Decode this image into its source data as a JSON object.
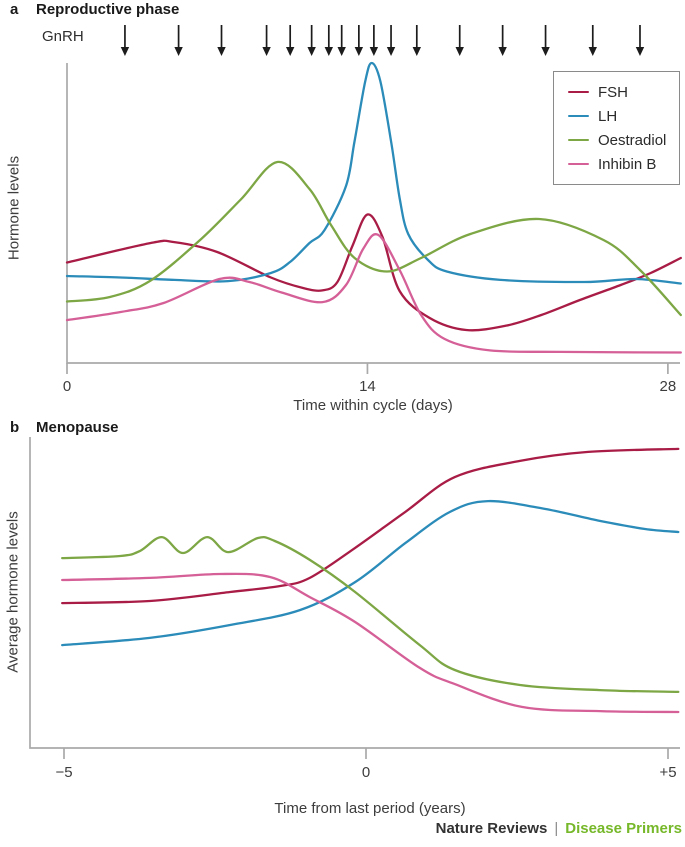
{
  "figure": {
    "footer": {
      "brand": "Nature Reviews",
      "separator": "|",
      "publication": "Disease Primers"
    }
  },
  "colors": {
    "fsh": "#a81c46",
    "lh": "#2b8bb9",
    "oestradiol": "#7da644",
    "inhibin_b": "#d55f97",
    "axis": "#a9a9a9",
    "arrow": "#1c1c1c",
    "tick_label": "#3d3d3d",
    "footer_brand": "#333333",
    "footer_publication": "#76b82a"
  },
  "legend": {
    "position": "top-right",
    "items": [
      {
        "label": "FSH",
        "color_key": "fsh"
      },
      {
        "label": "LH",
        "color_key": "lh"
      },
      {
        "label": "Oestradiol",
        "color_key": "oestradiol"
      },
      {
        "label": "Inhibin B",
        "color_key": "inhibin_b"
      }
    ]
  },
  "chart_data": [
    {
      "id": "panel_a",
      "type": "line",
      "panel_label": "a",
      "title": "Reproductive phase",
      "annotation": "GnRH",
      "xlabel": "Time within cycle (days)",
      "ylabel": "Hormone levels",
      "grid": false,
      "x_axis": {
        "range": [
          0,
          28.6
        ],
        "ticks": [
          {
            "value": 0,
            "label": "0"
          },
          {
            "value": 14,
            "label": "14"
          },
          {
            "value": 28,
            "label": "28"
          }
        ]
      },
      "y_axis": {
        "range": [
          0,
          105
        ],
        "tick_labels": "none (relative hormone levels)"
      },
      "gnrh_pulse_days": [
        2.7,
        5.2,
        7.2,
        9.3,
        10.4,
        11.4,
        12.2,
        12.8,
        13.6,
        14.3,
        15.1,
        16.3,
        18.3,
        20.3,
        22.3,
        24.5,
        26.7
      ],
      "series": [
        {
          "name": "FSH",
          "color_key": "fsh",
          "points": [
            [
              0,
              32.5
            ],
            [
              3.9,
              39
            ],
            [
              5,
              39.3
            ],
            [
              7,
              36
            ],
            [
              9.5,
              27.5
            ],
            [
              11,
              24
            ],
            [
              11.9,
              23.2
            ],
            [
              12.6,
              26
            ],
            [
              13.3,
              38
            ],
            [
              14,
              48.5
            ],
            [
              14.7,
              41
            ],
            [
              15.5,
              23
            ],
            [
              16.9,
              14
            ],
            [
              18.6,
              10
            ],
            [
              20.5,
              11.5
            ],
            [
              22.1,
              15
            ],
            [
              23.9,
              20
            ],
            [
              25.8,
              25
            ],
            [
              27.2,
              29
            ],
            [
              28.6,
              34
            ]
          ]
        },
        {
          "name": "LH",
          "color_key": "lh",
          "points": [
            [
              0,
              28
            ],
            [
              2.5,
              27.5
            ],
            [
              5,
              26.7
            ],
            [
              7.5,
              26.3
            ],
            [
              9.5,
              29
            ],
            [
              10.4,
              32.7
            ],
            [
              11.3,
              39
            ],
            [
              12,
              43.3
            ],
            [
              13,
              58
            ],
            [
              13.4,
              73
            ],
            [
              13.9,
              93
            ],
            [
              14.2,
              99
            ],
            [
              14.6,
              93
            ],
            [
              15.1,
              73
            ],
            [
              15.5,
              54
            ],
            [
              15.9,
              42
            ],
            [
              16.8,
              33.5
            ],
            [
              17.7,
              29.5
            ],
            [
              20.2,
              26.7
            ],
            [
              24.1,
              26
            ],
            [
              26.5,
              27
            ],
            [
              28.6,
              25.5
            ]
          ]
        },
        {
          "name": "Oestradiol",
          "color_key": "oestradiol",
          "points": [
            [
              0,
              19.5
            ],
            [
              2,
              21
            ],
            [
              3.9,
              26.5
            ],
            [
              6.2,
              40
            ],
            [
              8.1,
              53.5
            ],
            [
              9.8,
              66
            ],
            [
              11.3,
              57
            ],
            [
              12.3,
              45
            ],
            [
              13.4,
              34
            ],
            [
              14.9,
              29.5
            ],
            [
              16.5,
              34
            ],
            [
              18.8,
              42
            ],
            [
              22,
              47
            ],
            [
              25,
              40
            ],
            [
              26.7,
              30
            ],
            [
              28.6,
              15
            ]
          ]
        },
        {
          "name": "Inhibin B",
          "color_key": "inhibin_b",
          "points": [
            [
              0,
              13.3
            ],
            [
              2.5,
              16
            ],
            [
              4.5,
              19
            ],
            [
              7.1,
              27
            ],
            [
              8.5,
              26
            ],
            [
              10,
              22.5
            ],
            [
              11.9,
              19.3
            ],
            [
              13,
              25
            ],
            [
              13.8,
              37
            ],
            [
              14.5,
              41.7
            ],
            [
              15.5,
              30
            ],
            [
              16.5,
              15
            ],
            [
              17.6,
              7
            ],
            [
              19.7,
              3.2
            ],
            [
              23,
              2.7
            ],
            [
              28.6,
              2.5
            ]
          ]
        }
      ]
    },
    {
      "id": "panel_b",
      "type": "line",
      "panel_label": "b",
      "title": "Menopause",
      "xlabel": "Time from last period (years)",
      "ylabel": "Average hormone levels",
      "grid": false,
      "x_axis": {
        "range": [
          -5.2,
          5.2
        ],
        "ticks": [
          {
            "value": -5,
            "label": "−5"
          },
          {
            "value": 0,
            "label": "0"
          },
          {
            "value": 5,
            "label": "+5"
          }
        ]
      },
      "y_axis": {
        "range": [
          0,
          105
        ],
        "tick_labels": "none (relative hormone levels)"
      },
      "series": [
        {
          "name": "FSH",
          "color_key": "fsh",
          "points": [
            [
              -5.03,
              47.3
            ],
            [
              -3.58,
              48
            ],
            [
              -2.25,
              51
            ],
            [
              -1.42,
              53
            ],
            [
              -0.93,
              55.7
            ],
            [
              -0.18,
              65.7
            ],
            [
              0.65,
              77.7
            ],
            [
              1.47,
              89.3
            ],
            [
              2.55,
              94.7
            ],
            [
              3.68,
              97.7
            ],
            [
              5.17,
              98.7
            ]
          ]
        },
        {
          "name": "LH",
          "color_key": "lh",
          "points": [
            [
              -5.03,
              33.3
            ],
            [
              -3.58,
              35.7
            ],
            [
              -2.25,
              40
            ],
            [
              -1.09,
              45
            ],
            [
              -0.18,
              54.3
            ],
            [
              0.65,
              67.3
            ],
            [
              1.39,
              77.7
            ],
            [
              2.02,
              81.3
            ],
            [
              2.96,
              78.7
            ],
            [
              3.87,
              74.7
            ],
            [
              4.62,
              72
            ],
            [
              5.17,
              71
            ]
          ]
        },
        {
          "name": "Oestradiol",
          "color_key": "oestradiol",
          "points": [
            [
              -5.03,
              62.3
            ],
            [
              -4.07,
              63
            ],
            [
              -3.74,
              64.7
            ],
            [
              -3.38,
              69.3
            ],
            [
              -3.03,
              64
            ],
            [
              -2.63,
              69.3
            ],
            [
              -2.28,
              64.3
            ],
            [
              -1.79,
              69
            ],
            [
              -1.51,
              68
            ],
            [
              -0.93,
              61.7
            ],
            [
              -0.18,
              51
            ],
            [
              0.89,
              33.3
            ],
            [
              1.47,
              25
            ],
            [
              2.55,
              20
            ],
            [
              3.87,
              18.3
            ],
            [
              5.17,
              17.7
            ]
          ]
        },
        {
          "name": "Inhibin B",
          "color_key": "inhibin_b",
          "points": [
            [
              -5.03,
              55
            ],
            [
              -3.58,
              55.7
            ],
            [
              -2.42,
              57
            ],
            [
              -1.59,
              56
            ],
            [
              -0.93,
              49.3
            ],
            [
              -0.18,
              41
            ],
            [
              0.89,
              25.7
            ],
            [
              1.47,
              20.3
            ],
            [
              2.58,
              12.7
            ],
            [
              3.87,
              11.3
            ],
            [
              5.17,
              11
            ]
          ]
        }
      ]
    }
  ]
}
